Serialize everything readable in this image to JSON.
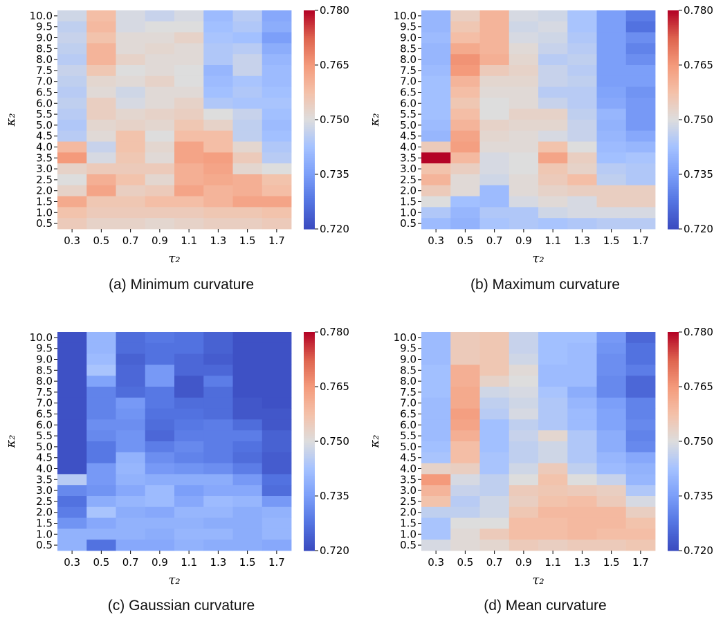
{
  "chart_data": [
    {
      "type": "heatmap",
      "caption": "(a) Minimum curvature",
      "xlabel": "τ₂",
      "ylabel": "κ₂",
      "x": [
        "0.3",
        "0.5",
        "0.7",
        "0.9",
        "1.1",
        "1.3",
        "1.5",
        "1.7"
      ],
      "y": [
        "10.0",
        "9.5",
        "9.0",
        "8.5",
        "8.0",
        "7.5",
        "7.0",
        "6.5",
        "6.0",
        "5.5",
        "5.0",
        "4.5",
        "4.0",
        "3.5",
        "3.0",
        "2.5",
        "2.0",
        "1.5",
        "1.0",
        "0.5"
      ],
      "values": [
        [
          0.748,
          0.758,
          0.749,
          0.747,
          0.749,
          0.741,
          0.745,
          0.737
        ],
        [
          0.746,
          0.759,
          0.749,
          0.75,
          0.75,
          0.742,
          0.744,
          0.738
        ],
        [
          0.747,
          0.757,
          0.751,
          0.751,
          0.753,
          0.743,
          0.742,
          0.735
        ],
        [
          0.746,
          0.76,
          0.751,
          0.752,
          0.751,
          0.744,
          0.745,
          0.738
        ],
        [
          0.745,
          0.76,
          0.753,
          0.751,
          0.751,
          0.744,
          0.747,
          0.74
        ],
        [
          0.747,
          0.756,
          0.75,
          0.751,
          0.75,
          0.74,
          0.747,
          0.741
        ],
        [
          0.746,
          0.752,
          0.751,
          0.753,
          0.75,
          0.741,
          0.743,
          0.741
        ],
        [
          0.745,
          0.751,
          0.748,
          0.751,
          0.751,
          0.742,
          0.744,
          0.742
        ],
        [
          0.746,
          0.754,
          0.749,
          0.751,
          0.753,
          0.744,
          0.743,
          0.743
        ],
        [
          0.745,
          0.754,
          0.752,
          0.753,
          0.754,
          0.75,
          0.747,
          0.742
        ],
        [
          0.744,
          0.752,
          0.753,
          0.752,
          0.756,
          0.753,
          0.746,
          0.741
        ],
        [
          0.745,
          0.751,
          0.757,
          0.75,
          0.758,
          0.758,
          0.746,
          0.742
        ],
        [
          0.759,
          0.747,
          0.757,
          0.752,
          0.763,
          0.758,
          0.752,
          0.744
        ],
        [
          0.765,
          0.749,
          0.756,
          0.751,
          0.763,
          0.764,
          0.755,
          0.745
        ],
        [
          0.753,
          0.755,
          0.755,
          0.755,
          0.761,
          0.763,
          0.752,
          0.75
        ],
        [
          0.75,
          0.761,
          0.757,
          0.752,
          0.761,
          0.762,
          0.761,
          0.757
        ],
        [
          0.753,
          0.763,
          0.754,
          0.755,
          0.763,
          0.76,
          0.761,
          0.758
        ],
        [
          0.762,
          0.756,
          0.756,
          0.758,
          0.758,
          0.76,
          0.763,
          0.763
        ],
        [
          0.757,
          0.755,
          0.755,
          0.755,
          0.755,
          0.756,
          0.756,
          0.757
        ],
        [
          0.755,
          0.753,
          0.753,
          0.752,
          0.753,
          0.754,
          0.754,
          0.755
        ]
      ],
      "colorbar": {
        "min": 0.72,
        "max": 0.78,
        "ticks": [
          "0.720",
          "0.735",
          "0.750",
          "0.765",
          "0.780"
        ]
      }
    },
    {
      "type": "heatmap",
      "caption": "(b) Maximum curvature",
      "xlabel": "τ₂",
      "ylabel": "κ₂",
      "x": [
        "0.3",
        "0.5",
        "0.7",
        "0.9",
        "1.1",
        "1.3",
        "1.5",
        "1.7"
      ],
      "y": [
        "10.0",
        "9.5",
        "9.0",
        "8.5",
        "8.0",
        "7.5",
        "7.0",
        "6.5",
        "6.0",
        "5.5",
        "5.0",
        "4.5",
        "4.0",
        "3.5",
        "3.0",
        "2.5",
        "2.0",
        "1.5",
        "1.0",
        "0.5"
      ],
      "values": [
        [
          0.74,
          0.754,
          0.76,
          0.749,
          0.748,
          0.743,
          0.735,
          0.729
        ],
        [
          0.74,
          0.756,
          0.76,
          0.748,
          0.749,
          0.743,
          0.735,
          0.727
        ],
        [
          0.741,
          0.758,
          0.76,
          0.749,
          0.748,
          0.744,
          0.735,
          0.732
        ],
        [
          0.74,
          0.762,
          0.76,
          0.751,
          0.747,
          0.745,
          0.735,
          0.73
        ],
        [
          0.74,
          0.766,
          0.761,
          0.752,
          0.745,
          0.746,
          0.735,
          0.732
        ],
        [
          0.741,
          0.765,
          0.755,
          0.753,
          0.747,
          0.745,
          0.735,
          0.735
        ],
        [
          0.742,
          0.76,
          0.752,
          0.752,
          0.747,
          0.746,
          0.735,
          0.735
        ],
        [
          0.742,
          0.758,
          0.751,
          0.751,
          0.745,
          0.745,
          0.736,
          0.733
        ],
        [
          0.742,
          0.756,
          0.75,
          0.751,
          0.747,
          0.745,
          0.737,
          0.734
        ],
        [
          0.742,
          0.758,
          0.75,
          0.753,
          0.753,
          0.746,
          0.74,
          0.734
        ],
        [
          0.741,
          0.76,
          0.753,
          0.752,
          0.752,
          0.747,
          0.739,
          0.734
        ],
        [
          0.74,
          0.763,
          0.752,
          0.751,
          0.749,
          0.747,
          0.74,
          0.737
        ],
        [
          0.755,
          0.764,
          0.751,
          0.751,
          0.757,
          0.75,
          0.741,
          0.74
        ],
        [
          0.78,
          0.759,
          0.749,
          0.75,
          0.763,
          0.754,
          0.742,
          0.743
        ],
        [
          0.757,
          0.754,
          0.749,
          0.75,
          0.756,
          0.753,
          0.745,
          0.744
        ],
        [
          0.76,
          0.751,
          0.748,
          0.751,
          0.755,
          0.758,
          0.746,
          0.744
        ],
        [
          0.755,
          0.751,
          0.741,
          0.751,
          0.753,
          0.754,
          0.754,
          0.754
        ],
        [
          0.75,
          0.742,
          0.741,
          0.749,
          0.751,
          0.749,
          0.754,
          0.754
        ],
        [
          0.744,
          0.74,
          0.744,
          0.744,
          0.748,
          0.749,
          0.749,
          0.749
        ],
        [
          0.741,
          0.739,
          0.743,
          0.744,
          0.743,
          0.744,
          0.745,
          0.745
        ]
      ],
      "colorbar": {
        "min": 0.72,
        "max": 0.78,
        "ticks": [
          "0.720",
          "0.735",
          "0.750",
          "0.765",
          "0.780"
        ]
      }
    },
    {
      "type": "heatmap",
      "caption": "(c) Gaussian curvature",
      "xlabel": "τ₂",
      "ylabel": "κ₂",
      "x": [
        "0.3",
        "0.5",
        "0.7",
        "0.9",
        "1.1",
        "1.3",
        "1.5",
        "1.7"
      ],
      "y": [
        "10.0",
        "9.5",
        "9.0",
        "8.5",
        "8.0",
        "7.5",
        "7.0",
        "6.5",
        "6.0",
        "5.5",
        "5.0",
        "4.5",
        "4.0",
        "3.5",
        "3.0",
        "2.5",
        "2.0",
        "1.5",
        "1.0",
        "0.5"
      ],
      "values": [
        [
          0.721,
          0.74,
          0.726,
          0.728,
          0.727,
          0.724,
          0.721,
          0.721
        ],
        [
          0.721,
          0.74,
          0.726,
          0.727,
          0.727,
          0.724,
          0.721,
          0.721
        ],
        [
          0.721,
          0.741,
          0.724,
          0.727,
          0.725,
          0.723,
          0.721,
          0.721
        ],
        [
          0.721,
          0.743,
          0.725,
          0.734,
          0.725,
          0.725,
          0.721,
          0.721
        ],
        [
          0.721,
          0.736,
          0.725,
          0.734,
          0.722,
          0.729,
          0.721,
          0.721
        ],
        [
          0.721,
          0.73,
          0.726,
          0.728,
          0.722,
          0.726,
          0.721,
          0.721
        ],
        [
          0.721,
          0.73,
          0.734,
          0.728,
          0.726,
          0.726,
          0.722,
          0.721
        ],
        [
          0.721,
          0.73,
          0.733,
          0.727,
          0.727,
          0.726,
          0.722,
          0.722
        ],
        [
          0.721,
          0.732,
          0.732,
          0.726,
          0.728,
          0.729,
          0.726,
          0.722
        ],
        [
          0.721,
          0.731,
          0.733,
          0.725,
          0.729,
          0.729,
          0.729,
          0.724
        ],
        [
          0.721,
          0.728,
          0.733,
          0.729,
          0.731,
          0.729,
          0.727,
          0.724
        ],
        [
          0.721,
          0.728,
          0.739,
          0.732,
          0.73,
          0.729,
          0.726,
          0.723
        ],
        [
          0.721,
          0.734,
          0.74,
          0.734,
          0.733,
          0.732,
          0.729,
          0.723
        ],
        [
          0.745,
          0.734,
          0.739,
          0.738,
          0.738,
          0.738,
          0.734,
          0.727
        ],
        [
          0.731,
          0.733,
          0.737,
          0.741,
          0.735,
          0.737,
          0.737,
          0.726
        ],
        [
          0.727,
          0.738,
          0.74,
          0.741,
          0.737,
          0.741,
          0.74,
          0.734
        ],
        [
          0.729,
          0.743,
          0.738,
          0.737,
          0.74,
          0.74,
          0.738,
          0.739
        ],
        [
          0.733,
          0.737,
          0.739,
          0.739,
          0.739,
          0.738,
          0.738,
          0.74
        ],
        [
          0.739,
          0.739,
          0.739,
          0.738,
          0.74,
          0.74,
          0.738,
          0.74
        ],
        [
          0.739,
          0.727,
          0.737,
          0.737,
          0.739,
          0.738,
          0.738,
          0.737
        ]
      ],
      "colorbar": {
        "min": 0.72,
        "max": 0.78,
        "ticks": [
          "0.720",
          "0.735",
          "0.750",
          "0.765",
          "0.780"
        ]
      }
    },
    {
      "type": "heatmap",
      "caption": "(d) Mean curvature",
      "xlabel": "τ₂",
      "ylabel": "κ₂",
      "x": [
        "0.3",
        "0.5",
        "0.7",
        "0.9",
        "1.1",
        "1.3",
        "1.5",
        "1.7"
      ],
      "y": [
        "10.0",
        "9.5",
        "9.0",
        "8.5",
        "8.0",
        "7.5",
        "7.0",
        "6.5",
        "6.0",
        "5.5",
        "5.0",
        "4.5",
        "4.0",
        "3.5",
        "3.0",
        "2.5",
        "2.0",
        "1.5",
        "1.0",
        "0.5"
      ],
      "values": [
        [
          0.741,
          0.755,
          0.756,
          0.747,
          0.742,
          0.742,
          0.734,
          0.725
        ],
        [
          0.741,
          0.755,
          0.756,
          0.747,
          0.742,
          0.741,
          0.733,
          0.727
        ],
        [
          0.741,
          0.755,
          0.756,
          0.748,
          0.742,
          0.741,
          0.732,
          0.727
        ],
        [
          0.742,
          0.761,
          0.756,
          0.751,
          0.741,
          0.741,
          0.732,
          0.729
        ],
        [
          0.742,
          0.761,
          0.753,
          0.75,
          0.741,
          0.741,
          0.731,
          0.725
        ],
        [
          0.742,
          0.762,
          0.748,
          0.749,
          0.743,
          0.738,
          0.731,
          0.725
        ],
        [
          0.741,
          0.762,
          0.746,
          0.748,
          0.744,
          0.74,
          0.735,
          0.73
        ],
        [
          0.741,
          0.764,
          0.745,
          0.749,
          0.744,
          0.741,
          0.736,
          0.73
        ],
        [
          0.741,
          0.763,
          0.742,
          0.746,
          0.744,
          0.741,
          0.736,
          0.731
        ],
        [
          0.741,
          0.761,
          0.742,
          0.747,
          0.752,
          0.744,
          0.738,
          0.73
        ],
        [
          0.742,
          0.758,
          0.742,
          0.746,
          0.748,
          0.744,
          0.738,
          0.731
        ],
        [
          0.743,
          0.758,
          0.743,
          0.746,
          0.748,
          0.744,
          0.74,
          0.737
        ],
        [
          0.753,
          0.754,
          0.743,
          0.748,
          0.755,
          0.746,
          0.741,
          0.739
        ],
        [
          0.765,
          0.749,
          0.746,
          0.75,
          0.757,
          0.75,
          0.747,
          0.74
        ],
        [
          0.76,
          0.747,
          0.746,
          0.755,
          0.756,
          0.755,
          0.754,
          0.744
        ],
        [
          0.757,
          0.745,
          0.748,
          0.754,
          0.757,
          0.758,
          0.755,
          0.749
        ],
        [
          0.746,
          0.746,
          0.748,
          0.756,
          0.759,
          0.759,
          0.759,
          0.754
        ],
        [
          0.743,
          0.75,
          0.75,
          0.758,
          0.758,
          0.759,
          0.759,
          0.757
        ],
        [
          0.743,
          0.751,
          0.755,
          0.758,
          0.758,
          0.759,
          0.758,
          0.758
        ],
        [
          0.749,
          0.751,
          0.752,
          0.755,
          0.754,
          0.755,
          0.755,
          0.756
        ]
      ],
      "colorbar": {
        "min": 0.72,
        "max": 0.78,
        "ticks": [
          "0.720",
          "0.735",
          "0.750",
          "0.765",
          "0.780"
        ]
      }
    }
  ]
}
